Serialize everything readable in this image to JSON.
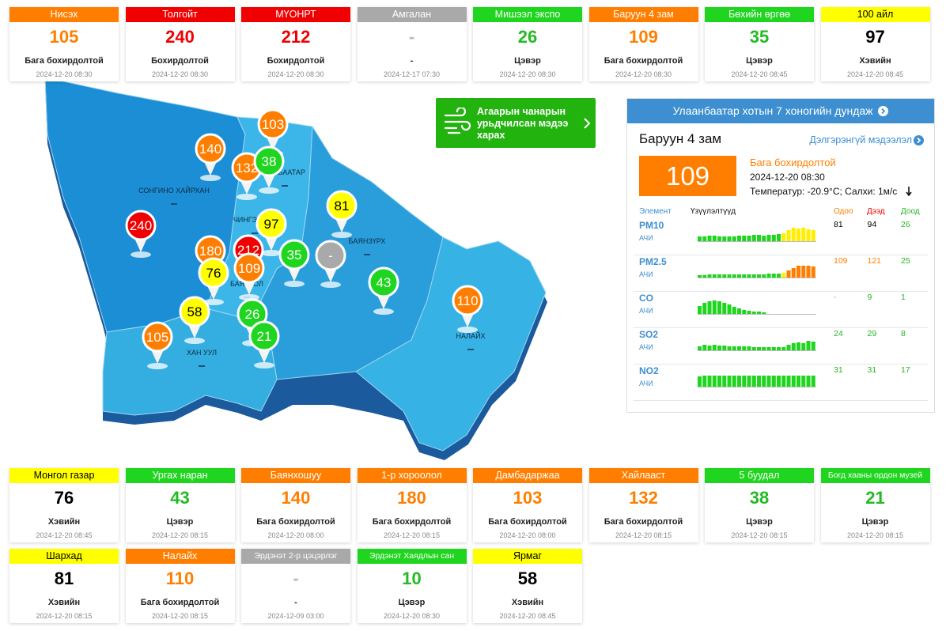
{
  "stations_top": [
    {
      "name": "Нисэх",
      "value": 105,
      "status": "Бага бохирдолтой",
      "date": "2024-12-20 08:30",
      "color": "#ff7e00"
    },
    {
      "name": "Толгойт",
      "value": 240,
      "status": "Бохирдолтой",
      "date": "2024-12-20 08:30",
      "color": "#f00000"
    },
    {
      "name": "МҮОНРТ",
      "value": 212,
      "status": "Бохирдолтой",
      "date": "2024-12-20 08:30",
      "color": "#f00000"
    },
    {
      "name": "Амгалан",
      "value": "-",
      "status": "-",
      "date": "2024-12-17 07:30",
      "color": "#a9a9a9"
    },
    {
      "name": "Мишээл экспо",
      "value": 26,
      "status": "Цэвэр",
      "date": "2024-12-20 08:30",
      "color": "#1fd51f"
    },
    {
      "name": "Баруун 4 зам",
      "value": 109,
      "status": "Бага бохирдолтой",
      "date": "2024-12-20 08:30",
      "color": "#ff7e00"
    },
    {
      "name": "Бөхийн өргөө",
      "value": 35,
      "status": "Цэвэр",
      "date": "2024-12-20 08:45",
      "color": "#1fd51f"
    },
    {
      "name": "100 айл",
      "value": 97,
      "status": "Хэвийн",
      "date": "2024-12-20 08:45",
      "color": "#ffff00"
    }
  ],
  "stations_bottom": [
    {
      "name": "Монгол газар",
      "value": 76,
      "status": "Хэвийн",
      "date": "2024-12-20 08:45",
      "color": "#ffff00"
    },
    {
      "name": "Ургах наран",
      "value": 43,
      "status": "Цэвэр",
      "date": "2024-12-20 08:15",
      "color": "#1fd51f"
    },
    {
      "name": "Баянхошуу",
      "value": 140,
      "status": "Бага бохирдолтой",
      "date": "2024-12-20 08:00",
      "color": "#ff7e00"
    },
    {
      "name": "1-р хороолол",
      "value": 180,
      "status": "Бага бохирдолтой",
      "date": "2024-12-20 08:15",
      "color": "#ff7e00"
    },
    {
      "name": "Дамбадаржаа",
      "value": 103,
      "status": "Бага бохирдолтой",
      "date": "2024-12-20 08:00",
      "color": "#ff7e00"
    },
    {
      "name": "Хайлааст",
      "value": 132,
      "status": "Бага бохирдолтой",
      "date": "2024-12-20 08:15",
      "color": "#ff7e00"
    },
    {
      "name": "5 буудал",
      "value": 38,
      "status": "Цэвэр",
      "date": "2024-12-20 08:15",
      "color": "#1fd51f"
    },
    {
      "name": "Богд хааны ордон музей",
      "value": 21,
      "status": "Цэвэр",
      "date": "2024-12-20 08:15",
      "color": "#1fd51f"
    },
    {
      "name": "Шархад",
      "value": 81,
      "status": "Хэвийн",
      "date": "2024-12-20 08:15",
      "color": "#ffff00"
    },
    {
      "name": "Налайх",
      "value": 110,
      "status": "Бага бохирдолтой",
      "date": "2024-12-20 08:15",
      "color": "#ff7e00"
    },
    {
      "name": "Эрдэнэт 2-р цэцэрлэг",
      "value": "-",
      "status": "-",
      "date": "2024-12-09 03:00",
      "color": "#a9a9a9"
    },
    {
      "name": "Эрдэнэт Хаядлын сан",
      "value": 10,
      "status": "Цэвэр",
      "date": "2024-12-20 08:30",
      "color": "#1fd51f"
    },
    {
      "name": "Ярмаг",
      "value": 58,
      "status": "Хэвийн",
      "date": "2024-12-20 08:45",
      "color": "#ffff00"
    }
  ],
  "map": {
    "labels": [
      "СОНГИНО ХАЙРХАН",
      "СҮХБААТАР",
      "ЧИНГЭЛТЭЙ",
      "БАЯНЗҮРХ",
      "БАЯНГОЛ",
      "ХАН УУЛ",
      "НАЛАЙХ"
    ],
    "markers": [
      {
        "value": 103,
        "color": "#ff7e00"
      },
      {
        "value": 140,
        "color": "#ff7e00"
      },
      {
        "value": 132,
        "color": "#ff7e00"
      },
      {
        "value": 38,
        "color": "#1fd51f"
      },
      {
        "value": 81,
        "color": "#ffff00"
      },
      {
        "value": 97,
        "color": "#ffff00"
      },
      {
        "value": 240,
        "color": "#f00000"
      },
      {
        "value": 180,
        "color": "#ff7e00"
      },
      {
        "value": 212,
        "color": "#f00000"
      },
      {
        "value": 35,
        "color": "#1fd51f"
      },
      {
        "value": "-",
        "color": "#a9a9a9"
      },
      {
        "value": 76,
        "color": "#ffff00"
      },
      {
        "value": 109,
        "color": "#ff7e00"
      },
      {
        "value": 43,
        "color": "#1fd51f"
      },
      {
        "value": 110,
        "color": "#ff7e00"
      },
      {
        "value": 58,
        "color": "#ffff00"
      },
      {
        "value": 26,
        "color": "#1fd51f"
      },
      {
        "value": 105,
        "color": "#ff7e00"
      },
      {
        "value": 21,
        "color": "#1fd51f"
      }
    ]
  },
  "forecast_button": {
    "text": "Агаарын чанарын урьдчилсан мэдээ харах"
  },
  "panel": {
    "title": "Улаанбаатар хотын 7 хоногийн дундаж",
    "station": "Баруун 4 зам",
    "link": "Дэлгэрэнгүй мэдээлэл",
    "value": 109,
    "color": "#ff7e00",
    "status": "Бага бохирдолтой",
    "date": "2024-12-20 08:30",
    "weather": "Температур: -20.9°C; Салхи: 1м/с",
    "columns": [
      "Элемент",
      "Үзүүлэлтүүд",
      "Одоо",
      "Дээд",
      "Доод"
    ],
    "rows": [
      {
        "element": "PM10",
        "unit": "АЧИ",
        "now": 81,
        "max": 94,
        "min": 26,
        "colors": [
          "#000000",
          "#000000",
          "#22b822"
        ],
        "bars": [
          6,
          6,
          7,
          7,
          6,
          6,
          6,
          6,
          7,
          7,
          7,
          8,
          8,
          7,
          8,
          8,
          9,
          10,
          14,
          17,
          16,
          17,
          15,
          14
        ],
        "bar_colors": [
          "#1fd51f",
          "#1fd51f",
          "#1fd51f",
          "#1fd51f",
          "#1fd51f",
          "#1fd51f",
          "#1fd51f",
          "#1fd51f",
          "#1fd51f",
          "#1fd51f",
          "#1fd51f",
          "#1fd51f",
          "#1fd51f",
          "#1fd51f",
          "#1fd51f",
          "#1fd51f",
          "#1fd51f",
          "#ffee00",
          "#ffee00",
          "#ffee00",
          "#ffee00",
          "#ffee00",
          "#ffee00",
          "#ffee00"
        ]
      },
      {
        "element": "PM2.5",
        "unit": "АЧИ",
        "now": 109,
        "max": 121,
        "min": 25,
        "colors": [
          "#ff7e00",
          "#ff7e00",
          "#22b822"
        ],
        "bars": [
          3,
          3,
          4,
          4,
          4,
          4,
          4,
          4,
          4,
          4,
          4,
          4,
          4,
          4,
          5,
          5,
          5,
          6,
          9,
          12,
          15,
          15,
          15,
          14
        ],
        "bar_colors": [
          "#1fd51f",
          "#1fd51f",
          "#1fd51f",
          "#1fd51f",
          "#1fd51f",
          "#1fd51f",
          "#1fd51f",
          "#1fd51f",
          "#1fd51f",
          "#1fd51f",
          "#1fd51f",
          "#1fd51f",
          "#1fd51f",
          "#1fd51f",
          "#1fd51f",
          "#1fd51f",
          "#1fd51f",
          "#ffee00",
          "#ff7e00",
          "#ff7e00",
          "#ff7e00",
          "#ff7e00",
          "#ff7e00",
          "#ff7e00"
        ]
      },
      {
        "element": "CO",
        "unit": "АЧИ",
        "now": "-",
        "max": 9,
        "min": 1,
        "colors": [
          "#aaaaaa",
          "#22b822",
          "#22b822"
        ],
        "bars": [
          10,
          14,
          16,
          17,
          16,
          14,
          12,
          9,
          7,
          5,
          4,
          3,
          3,
          2
        ],
        "bar_colors": [
          "#1fd51f",
          "#1fd51f",
          "#1fd51f",
          "#1fd51f",
          "#1fd51f",
          "#1fd51f",
          "#1fd51f",
          "#1fd51f",
          "#1fd51f",
          "#1fd51f",
          "#1fd51f",
          "#1fd51f",
          "#1fd51f",
          "#1fd51f"
        ]
      },
      {
        "element": "SO2",
        "unit": "АЧИ",
        "now": 24,
        "max": 29,
        "min": 8,
        "colors": [
          "#22b822",
          "#22b822",
          "#22b822"
        ],
        "bars": [
          5,
          7,
          6,
          7,
          6,
          6,
          5,
          5,
          5,
          5,
          5,
          4,
          4,
          4,
          4,
          4,
          4,
          4,
          7,
          9,
          10,
          9,
          12,
          11
        ],
        "bar_colors": [
          "#1fd51f",
          "#1fd51f",
          "#1fd51f",
          "#1fd51f",
          "#1fd51f",
          "#1fd51f",
          "#1fd51f",
          "#1fd51f",
          "#1fd51f",
          "#1fd51f",
          "#1fd51f",
          "#1fd51f",
          "#1fd51f",
          "#1fd51f",
          "#1fd51f",
          "#1fd51f",
          "#1fd51f",
          "#1fd51f",
          "#1fd51f",
          "#1fd51f",
          "#1fd51f",
          "#1fd51f",
          "#1fd51f",
          "#1fd51f"
        ]
      },
      {
        "element": "NO2",
        "unit": "АЧИ",
        "now": 31,
        "max": 31,
        "min": 17,
        "colors": [
          "#22b822",
          "#22b822",
          "#22b822"
        ],
        "bars": [
          13,
          14,
          14,
          14,
          14,
          14,
          14,
          14,
          14,
          14,
          14,
          14,
          14,
          14,
          14,
          14,
          14,
          14,
          14,
          14,
          14,
          14,
          14,
          14
        ],
        "bar_colors": [
          "#1fd51f",
          "#1fd51f",
          "#1fd51f",
          "#1fd51f",
          "#1fd51f",
          "#1fd51f",
          "#1fd51f",
          "#1fd51f",
          "#1fd51f",
          "#1fd51f",
          "#1fd51f",
          "#1fd51f",
          "#1fd51f",
          "#1fd51f",
          "#1fd51f",
          "#1fd51f",
          "#1fd51f",
          "#1fd51f",
          "#1fd51f",
          "#1fd51f",
          "#1fd51f",
          "#1fd51f",
          "#1fd51f",
          "#1fd51f"
        ]
      }
    ]
  }
}
